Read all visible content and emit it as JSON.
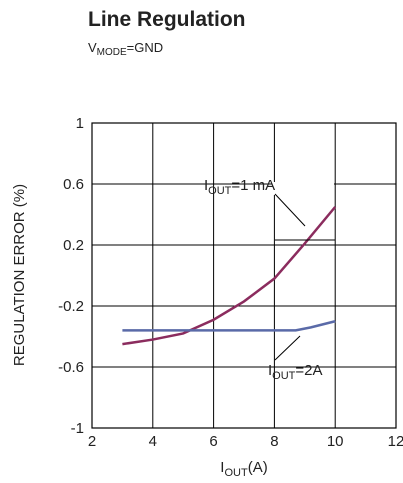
{
  "chart_data": {
    "type": "line",
    "title": "Line Regulation",
    "subtitle": {
      "main": "V",
      "sub": "MODE",
      "rest": "=GND"
    },
    "xlabel": {
      "main": "I",
      "sub": "OUT",
      "rest": "(A)"
    },
    "ylabel": "REGULATION ERROR (%)",
    "xlim": [
      2,
      12
    ],
    "xticks": [
      2,
      4,
      6,
      8,
      10,
      12
    ],
    "ylim": [
      -1,
      1
    ],
    "yticks": [
      1,
      0.6,
      0.2,
      -0.2,
      -0.6,
      -1
    ],
    "grid": true,
    "series": [
      {
        "name": {
          "main": "I",
          "sub": "OUT",
          "rest": "=1 mA"
        },
        "color": "#8b2c5e",
        "x": [
          3,
          4,
          5,
          6,
          7,
          8,
          9,
          10
        ],
        "values": [
          -0.45,
          -0.42,
          -0.38,
          -0.29,
          -0.17,
          -0.02,
          0.21,
          0.45
        ]
      },
      {
        "name": {
          "main": "I",
          "sub": "OUT",
          "rest": "=2A"
        },
        "color": "#5a6aa8",
        "x": [
          3,
          8.7,
          9.2,
          10
        ],
        "values": [
          -0.36,
          -0.36,
          -0.34,
          -0.3
        ]
      }
    ]
  }
}
